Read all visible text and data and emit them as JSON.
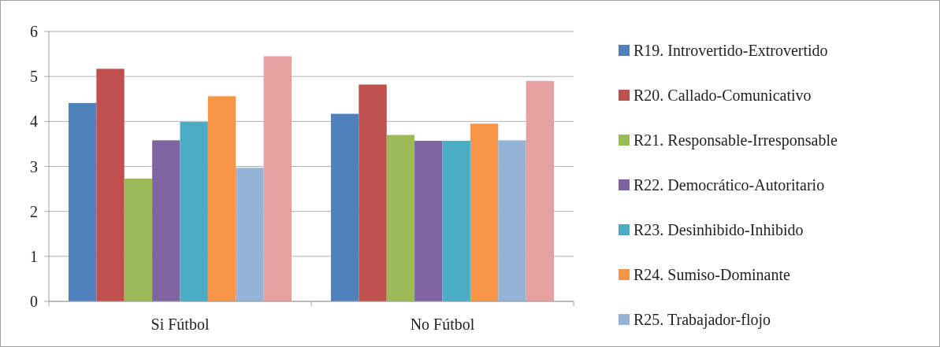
{
  "chart_data": {
    "type": "bar",
    "categories": [
      "Si Fútbol",
      "No Fútbol"
    ],
    "series": [
      {
        "name": "R19. Introvertido-Extrovertido",
        "color": "#4f81bd",
        "values": [
          4.41,
          4.17
        ]
      },
      {
        "name": "R20. Callado-Comunicativo",
        "color": "#c0504d",
        "values": [
          5.17,
          4.82
        ]
      },
      {
        "name": "R21. Responsable-Irresponsable",
        "color": "#9bbb59",
        "values": [
          2.73,
          3.7
        ]
      },
      {
        "name": "R22. Democrático-Autoritario",
        "color": "#8064a2",
        "values": [
          3.58,
          3.57
        ]
      },
      {
        "name": "R23. Desinhibido-Inhibido",
        "color": "#4bacc6",
        "values": [
          3.99,
          3.57
        ]
      },
      {
        "name": "R24. Sumiso-Dominante",
        "color": "#f79646",
        "values": [
          4.56,
          3.95
        ]
      },
      {
        "name": "R25. Trabajador-flojo",
        "color": "#95b3d7",
        "values": [
          2.97,
          3.58
        ]
      },
      {
        "color": "#e6a0a0",
        "values": [
          5.45,
          4.9
        ]
      }
    ],
    "ylim": [
      0,
      6
    ],
    "yticks": [
      0,
      1,
      2,
      3,
      4,
      5,
      6
    ],
    "grid": "y",
    "legend": "right"
  }
}
